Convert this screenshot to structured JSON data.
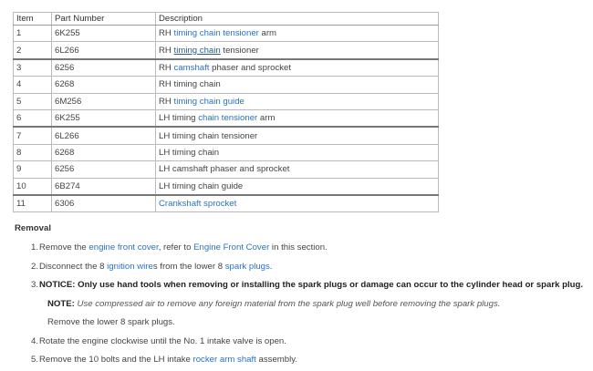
{
  "table": {
    "headers": [
      "Item",
      "Part Number",
      "Description"
    ],
    "rows": [
      {
        "item": "1",
        "part": "6K255",
        "desc": [
          {
            "t": "RH "
          },
          {
            "t": "timing chain tensioner",
            "link": true
          },
          {
            "t": " arm"
          }
        ]
      },
      {
        "item": "2",
        "part": "6L266",
        "desc": [
          {
            "t": "RH "
          },
          {
            "t": "timing chain",
            "link": true,
            "underline": true
          },
          {
            "t": " tensioner"
          }
        ]
      },
      {
        "item": "3",
        "part": "6256",
        "desc": [
          {
            "t": "RH "
          },
          {
            "t": "camshaft",
            "link": true
          },
          {
            "t": " phaser and sprocket"
          }
        ]
      },
      {
        "item": "4",
        "part": "6268",
        "desc": [
          {
            "t": "RH timing chain"
          }
        ]
      },
      {
        "item": "5",
        "part": "6M256",
        "desc": [
          {
            "t": "RH "
          },
          {
            "t": "timing chain guide",
            "link": true
          }
        ]
      },
      {
        "item": "6",
        "part": "6K255",
        "desc": [
          {
            "t": "LH timing "
          },
          {
            "t": "chain tensioner",
            "link": true
          },
          {
            "t": " arm"
          }
        ]
      },
      {
        "item": "7",
        "part": "6L266",
        "desc": [
          {
            "t": "LH timing chain tensioner"
          }
        ]
      },
      {
        "item": "8",
        "part": "6268",
        "desc": [
          {
            "t": "LH timing chain"
          }
        ]
      },
      {
        "item": "9",
        "part": "6256",
        "desc": [
          {
            "t": "LH camshaft phaser and sprocket"
          }
        ]
      },
      {
        "item": "10",
        "part": "6B274",
        "desc": [
          {
            "t": "LH timing chain guide"
          }
        ]
      },
      {
        "item": "11",
        "part": "6306",
        "desc": [
          {
            "t": "Crankshaft sprocket",
            "link": true
          }
        ]
      }
    ]
  },
  "removal": {
    "heading": "Removal",
    "steps": [
      {
        "num": "1.",
        "segs": [
          {
            "t": "Remove the "
          },
          {
            "t": "engine front cover",
            "link": true
          },
          {
            "t": ", refer to "
          },
          {
            "t": "Engine Front Cover",
            "link": true
          },
          {
            "t": " in this section."
          }
        ]
      },
      {
        "num": "2.",
        "segs": [
          {
            "t": "Disconnect the 8 "
          },
          {
            "t": "ignition wire",
            "link": true
          },
          {
            "t": "s from the lower 8 "
          },
          {
            "t": "spark plugs",
            "link": true
          },
          {
            "t": "."
          }
        ]
      },
      {
        "num": "3.",
        "segs": [
          {
            "t": "NOTICE: Only use hand tools when removing or installing the ",
            "bold": true
          },
          {
            "t": "spark plug",
            "link": true,
            "bold": true
          },
          {
            "t": "s or damage can occur to the ",
            "bold": true
          },
          {
            "t": "cylinder head",
            "link": true,
            "bold": true
          },
          {
            "t": " or spark plug.",
            "bold": true
          }
        ]
      },
      {
        "num": "",
        "segs": [
          {
            "t": "NOTE: ",
            "bold": true
          },
          {
            "t": "Use compressed air to remove any foreign material from the spark plug well before removing the spark plugs.",
            "italic": true
          }
        ]
      },
      {
        "num": "",
        "segs": [
          {
            "t": "Remove the lower 8 spark plugs."
          }
        ]
      },
      {
        "num": "4.",
        "segs": [
          {
            "t": "Rotate the engine clockwise until the No. 1 intake valve is open."
          }
        ]
      },
      {
        "num": "5.",
        "segs": [
          {
            "t": "Remove the 10 bolts and the LH intake "
          },
          {
            "t": "rocker arm shaft",
            "link": true
          },
          {
            "t": " assembly."
          }
        ]
      }
    ]
  },
  "colors": {
    "link": "#2a72c2",
    "text": "#444444"
  }
}
